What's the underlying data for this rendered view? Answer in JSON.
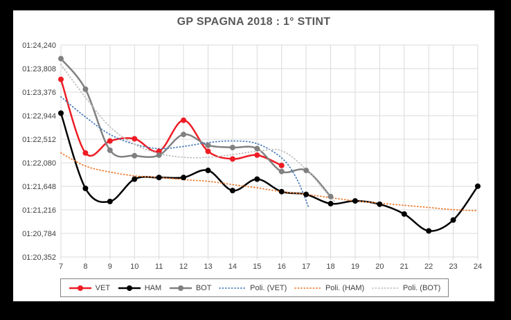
{
  "colors": {
    "vet": "#ed1c24",
    "ham": "#000000",
    "bot": "#808080",
    "poli_vet": "#4a7ebb",
    "poli_ham": "#ed7d31",
    "poli_bot": "#bfbfbf",
    "grid": "#d9d9d9",
    "axis_text": "#404040"
  },
  "chart_data": {
    "type": "line",
    "title": "GP SPAGNA 2018 : 1° STINT",
    "xlabel": "",
    "ylabel": "",
    "grid": true,
    "legend_position": "bottom",
    "xlim": [
      7,
      24
    ],
    "ylim": [
      80.352,
      84.24
    ],
    "x_ticks": [
      7,
      8,
      9,
      10,
      11,
      12,
      13,
      14,
      15,
      16,
      17,
      18,
      19,
      20,
      21,
      22,
      23,
      24
    ],
    "y_ticks": [
      {
        "label": "01:24,240",
        "value": 84.24
      },
      {
        "label": "01:23,808",
        "value": 83.808
      },
      {
        "label": "01:23,376",
        "value": 83.376
      },
      {
        "label": "01:22,944",
        "value": 82.944
      },
      {
        "label": "01:22,512",
        "value": 82.512
      },
      {
        "label": "01:22,080",
        "value": 82.08
      },
      {
        "label": "01:21,648",
        "value": 81.648
      },
      {
        "label": "01:21,216",
        "value": 81.216
      },
      {
        "label": "01:20,784",
        "value": 80.784
      },
      {
        "label": "01:20,352",
        "value": 80.352
      }
    ],
    "y_units": "lap time min:sec,ms",
    "series": [
      {
        "name": "VET",
        "style": "solid",
        "marker": true,
        "color_key": "vet",
        "x": [
          7,
          8,
          9,
          10,
          11,
          12,
          13,
          14,
          15,
          16
        ],
        "y": [
          83.61,
          82.26,
          82.48,
          82.52,
          82.29,
          82.86,
          82.29,
          82.15,
          82.22,
          82.03
        ]
      },
      {
        "name": "HAM",
        "style": "solid",
        "marker": true,
        "color_key": "ham",
        "x": [
          7,
          8,
          9,
          10,
          11,
          12,
          13,
          14,
          15,
          16,
          17,
          18,
          19,
          20,
          21,
          22,
          23,
          24
        ],
        "y": [
          82.99,
          81.61,
          81.37,
          81.78,
          81.81,
          81.81,
          81.94,
          81.57,
          81.78,
          81.55,
          81.5,
          81.33,
          81.38,
          81.32,
          81.14,
          80.83,
          81.03,
          81.65
        ]
      },
      {
        "name": "BOT",
        "style": "solid",
        "marker": true,
        "color_key": "bot",
        "x": [
          7,
          8,
          9,
          10,
          11,
          12,
          13,
          14,
          15,
          16,
          17,
          18
        ],
        "y": [
          83.99,
          83.43,
          82.31,
          82.21,
          82.22,
          82.6,
          82.4,
          82.36,
          82.34,
          81.92,
          81.94,
          81.46
        ]
      },
      {
        "name": "Poli. (VET)",
        "style": "dotted",
        "marker": false,
        "color_key": "poli_vet",
        "x": [
          7,
          8,
          9,
          10,
          11,
          12,
          13,
          14,
          15,
          16,
          16.6,
          17.1
        ],
        "y": [
          83.29,
          82.92,
          82.6,
          82.42,
          82.34,
          82.38,
          82.45,
          82.48,
          82.43,
          82.17,
          81.8,
          81.27
        ]
      },
      {
        "name": "Poli. (HAM)",
        "style": "dotted",
        "marker": false,
        "color_key": "poli_ham",
        "x": [
          7,
          8,
          9,
          10,
          11,
          12,
          13,
          14,
          15,
          16,
          17,
          18,
          19,
          20,
          21,
          22,
          23,
          24
        ],
        "y": [
          82.26,
          82.02,
          81.91,
          81.84,
          81.81,
          81.77,
          81.74,
          81.68,
          81.62,
          81.55,
          81.5,
          81.44,
          81.38,
          81.34,
          81.3,
          81.26,
          81.22,
          81.2
        ]
      },
      {
        "name": "Poli. (BOT)",
        "style": "dotted",
        "marker": false,
        "color_key": "poli_bot",
        "x": [
          7,
          8,
          9,
          10,
          11,
          12,
          13,
          14,
          15,
          16,
          17,
          18,
          18.2
        ],
        "y": [
          83.88,
          83.28,
          82.74,
          82.42,
          82.25,
          82.18,
          82.18,
          82.23,
          82.29,
          82.3,
          81.96,
          81.44,
          81.37
        ]
      }
    ]
  }
}
